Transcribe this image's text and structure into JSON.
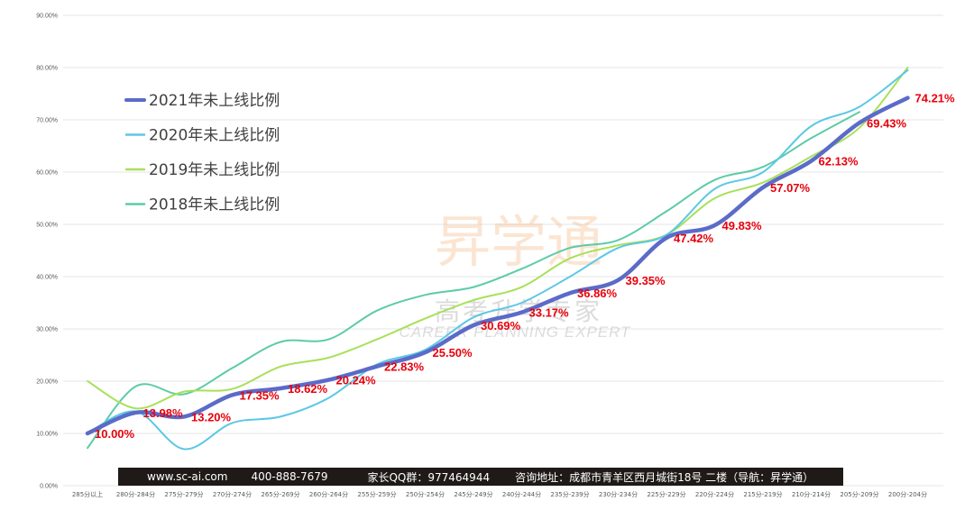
{
  "chart_data": {
    "type": "line",
    "categories": [
      "285分以上",
      "280分-284分",
      "275分-279分",
      "270分-274分",
      "265分-269分",
      "260分-264分",
      "255分-259分",
      "250分-254分",
      "245分-249分",
      "240分-244分",
      "235分-239分",
      "230分-234分",
      "225分-229分",
      "220分-224分",
      "215分-219分",
      "210分-214分",
      "205分-209分",
      "200分-204分"
    ],
    "y_ticks": [
      "90.00%",
      "80.00%",
      "70.00%",
      "60.00%",
      "50.00%",
      "40.00%",
      "30.00%",
      "20.00%",
      "10.00%",
      "0.00%"
    ],
    "ylim": [
      0,
      90
    ],
    "grid": true,
    "legend_position": "left",
    "series": [
      {
        "name": "2021年未上线比例",
        "color": "#5b6bc8",
        "width": 4.5,
        "values": [
          10.0,
          13.98,
          13.2,
          17.35,
          18.62,
          20.24,
          22.83,
          25.5,
          30.69,
          33.17,
          36.86,
          39.35,
          47.42,
          49.83,
          57.07,
          62.13,
          69.43,
          74.21
        ],
        "labels": [
          "10.00%",
          "13.98%",
          "13.20%",
          "17.35%",
          "18.62%",
          "20.24%",
          "22.83%",
          "25.50%",
          "30.69%",
          "33.17%",
          "36.86%",
          "39.35%",
          "47.42%",
          "49.83%",
          "57.07%",
          "62.13%",
          "69.43%",
          "74.21%"
        ]
      },
      {
        "name": "2020年未上线比例",
        "color": "#5bc8e6",
        "width": 2,
        "values": [
          10.0,
          14.2,
          7.0,
          12.0,
          13.2,
          16.8,
          23.2,
          26.0,
          32.2,
          35.0,
          40.0,
          45.5,
          48.0,
          56.8,
          60.0,
          68.8,
          72.5,
          79.5
        ]
      },
      {
        "name": "2019年未上线比例",
        "color": "#a8e05a",
        "width": 2,
        "values": [
          20.0,
          14.8,
          18.0,
          18.5,
          22.8,
          24.5,
          28.0,
          32.0,
          35.5,
          38.0,
          43.5,
          46.0,
          48.0,
          55.0,
          58.0,
          63.0,
          68.5,
          80.0
        ]
      },
      {
        "name": "2018年未上线比例",
        "color": "#5ccba8",
        "width": 2,
        "values": [
          7.2,
          19.0,
          17.5,
          22.5,
          27.5,
          28.0,
          33.5,
          36.5,
          38.0,
          41.5,
          45.5,
          47.0,
          52.5,
          58.5,
          61.0,
          66.5,
          71.5,
          null
        ]
      }
    ]
  },
  "watermark": {
    "main": "昇学通",
    "sub": "高考升学专家",
    "en": "CAREER PLANNING EXPERT"
  },
  "footer": {
    "website": "www.sc-ai.com",
    "phone": "400-888-7679",
    "qq": "家长QQ群：977464944",
    "address": "咨询地址：成都市青羊区西月城街18号 二楼（导航：昇学通）"
  }
}
